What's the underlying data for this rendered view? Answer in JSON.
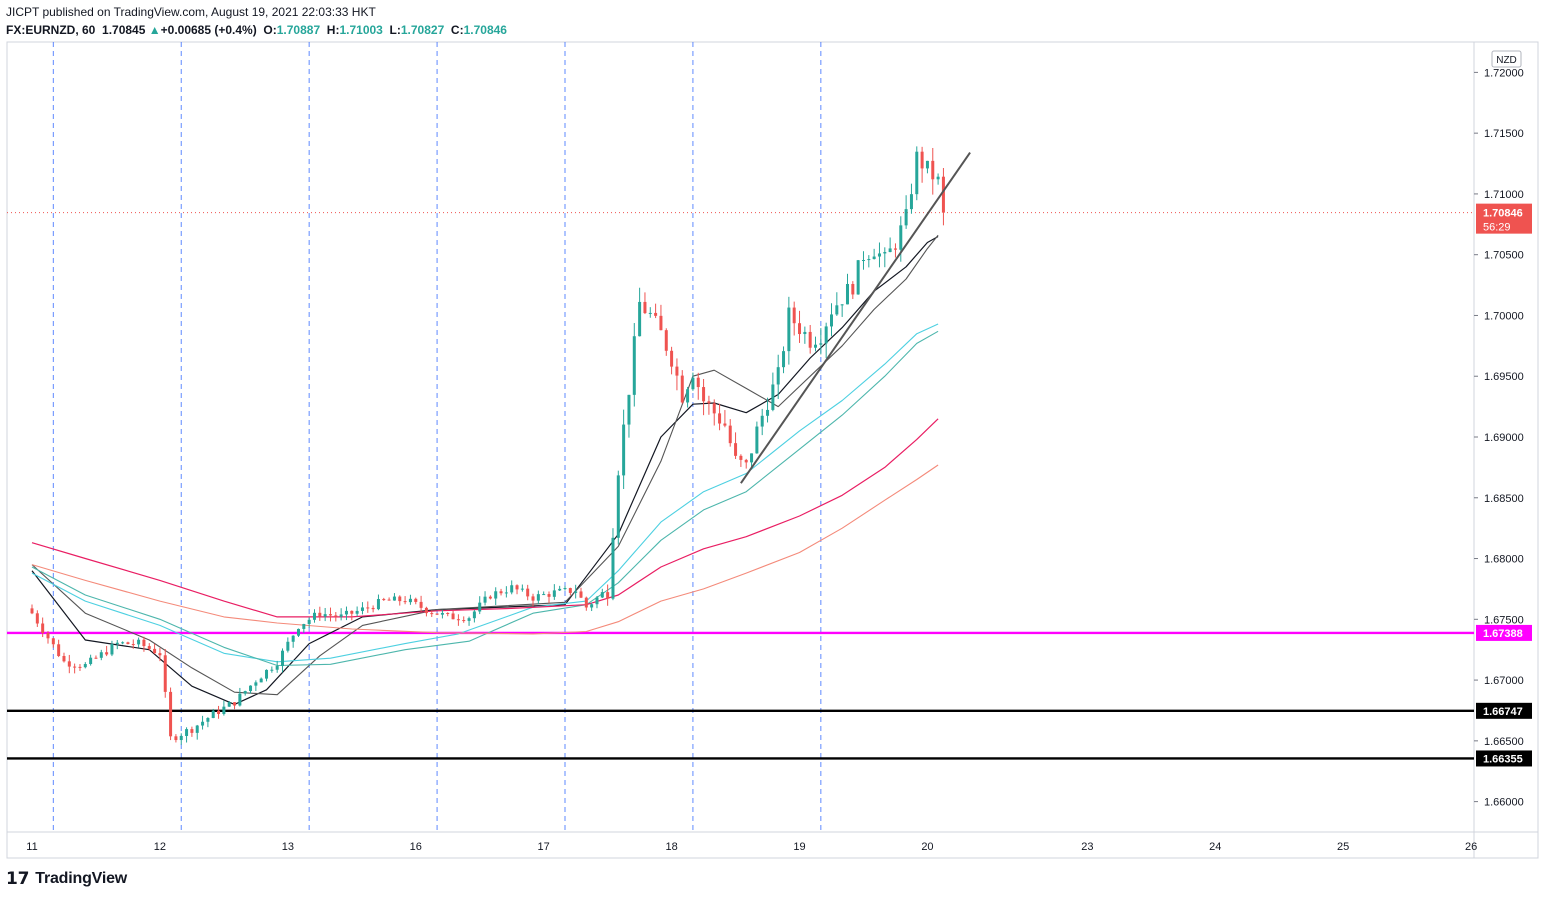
{
  "header": {
    "publisher": "JICPT published on TradingView.com, August 19, 2021 22:03:33 HKT",
    "symbol": "FX:EURNZD, 60",
    "price": "1.70845",
    "change": "+0.00685 (+0.4%)",
    "o_label": "O:",
    "o_value": "1.70887",
    "h_label": "H:",
    "h_value": "1.71003",
    "l_label": "L:",
    "l_value": "1.70827",
    "c_label": "C:",
    "c_value": "1.70846"
  },
  "footer": {
    "logo_text": "TradingView",
    "logo_mark": "17"
  },
  "colors": {
    "up": "#26a69a",
    "down": "#ef5350",
    "support_magenta": "#ff00ff",
    "price_tag": "#ef5350",
    "ma_cyan": "#4dd0e1",
    "ma_crimson": "#e91e63",
    "ma_salmon": "#f48a7a",
    "ma_black": "#131722",
    "ma_gray": "#555555",
    "trendline": "#555555",
    "grid_dash": "#2962ff"
  },
  "chart_data": {
    "type": "candlestick",
    "currency_label": "NZD",
    "ylim": [
      1.6575,
      1.7225
    ],
    "y_ticks": [
      "1.72000",
      "1.71500",
      "1.71000",
      "1.70500",
      "1.70000",
      "1.69500",
      "1.69000",
      "1.68500",
      "1.68000",
      "1.67500",
      "1.67000",
      "1.66500",
      "1.66000"
    ],
    "x_ticks": [
      {
        "t": 0,
        "label": "11"
      },
      {
        "t": 24,
        "label": "12"
      },
      {
        "t": 48,
        "label": "13"
      },
      {
        "t": 72,
        "label": "16"
      },
      {
        "t": 96,
        "label": "17"
      },
      {
        "t": 120,
        "label": "18"
      },
      {
        "t": 144,
        "label": "19"
      },
      {
        "t": 168,
        "label": "20"
      },
      {
        "t": 198,
        "label": "23"
      },
      {
        "t": 222,
        "label": "24"
      },
      {
        "t": 246,
        "label": "25"
      },
      {
        "t": 270,
        "label": "26"
      }
    ],
    "session_markers": [
      4,
      28,
      52,
      76,
      100,
      124,
      148
    ],
    "current_price": {
      "value": 1.70846,
      "label": "1.70846",
      "countdown": "56:29"
    },
    "horizontal_levels": [
      {
        "value": 1.67388,
        "label": "1.67388",
        "color": "#ff00ff"
      },
      {
        "value": 1.66747,
        "label": "1.66747",
        "color": "#000000"
      },
      {
        "value": 1.66355,
        "label": "1.66355",
        "color": "#000000"
      }
    ],
    "trendline": {
      "start": {
        "t": 133,
        "price": 1.6862
      },
      "end": {
        "t": 176,
        "price": 1.7134
      }
    },
    "close_anchors": [
      [
        0,
        1.6755
      ],
      [
        6,
        1.6715
      ],
      [
        10,
        1.6712
      ],
      [
        16,
        1.673
      ],
      [
        20,
        1.673
      ],
      [
        24,
        1.6722
      ],
      [
        26,
        1.6652
      ],
      [
        30,
        1.666
      ],
      [
        34,
        1.6672
      ],
      [
        38,
        1.6682
      ],
      [
        42,
        1.67
      ],
      [
        46,
        1.6715
      ],
      [
        50,
        1.6745
      ],
      [
        54,
        1.6755
      ],
      [
        58,
        1.6752
      ],
      [
        62,
        1.6758
      ],
      [
        66,
        1.6765
      ],
      [
        70,
        1.6766
      ],
      [
        74,
        1.6758
      ],
      [
        78,
        1.6752
      ],
      [
        82,
        1.6752
      ],
      [
        86,
        1.677
      ],
      [
        90,
        1.6776
      ],
      [
        94,
        1.6768
      ],
      [
        98,
        1.6772
      ],
      [
        102,
        1.6774
      ],
      [
        104,
        1.676
      ],
      [
        108,
        1.6775
      ],
      [
        110,
        1.6875
      ],
      [
        112,
        1.694
      ],
      [
        114,
        1.701
      ],
      [
        116,
        1.7
      ],
      [
        118,
        1.6985
      ],
      [
        120,
        1.6965
      ],
      [
        122,
        1.6935
      ],
      [
        124,
        1.6955
      ],
      [
        126,
        1.693
      ],
      [
        128,
        1.692
      ],
      [
        130,
        1.691
      ],
      [
        132,
        1.688
      ],
      [
        134,
        1.6875
      ],
      [
        136,
        1.6905
      ],
      [
        138,
        1.693
      ],
      [
        140,
        1.695
      ],
      [
        142,
        1.7
      ],
      [
        144,
        1.699
      ],
      [
        146,
        1.698
      ],
      [
        148,
        1.6985
      ],
      [
        150,
        1.7005
      ],
      [
        152,
        1.7015
      ],
      [
        154,
        1.7025
      ],
      [
        156,
        1.705
      ],
      [
        158,
        1.7055
      ],
      [
        160,
        1.7045
      ],
      [
        162,
        1.706
      ],
      [
        164,
        1.708
      ],
      [
        166,
        1.713
      ],
      [
        168,
        1.712
      ],
      [
        170,
        1.711
      ],
      [
        171,
        1.7085
      ]
    ],
    "moving_averages": [
      {
        "name": "MA black",
        "color": "#131722",
        "width": 1.2,
        "points": [
          [
            0,
            1.679
          ],
          [
            10,
            1.6733
          ],
          [
            22,
            1.6725
          ],
          [
            30,
            1.6695
          ],
          [
            38,
            1.668
          ],
          [
            44,
            1.6692
          ],
          [
            52,
            1.673
          ],
          [
            62,
            1.6752
          ],
          [
            76,
            1.6758
          ],
          [
            100,
            1.6762
          ],
          [
            110,
            1.682
          ],
          [
            118,
            1.69
          ],
          [
            124,
            1.6927
          ],
          [
            128,
            1.6928
          ],
          [
            134,
            1.692
          ],
          [
            140,
            1.6935
          ],
          [
            146,
            1.6965
          ],
          [
            152,
            1.699
          ],
          [
            158,
            1.702
          ],
          [
            164,
            1.704
          ],
          [
            168,
            1.706
          ],
          [
            170,
            1.7065
          ]
        ]
      },
      {
        "name": "MA gray",
        "color": "#555555",
        "width": 1.1,
        "points": [
          [
            0,
            1.6795
          ],
          [
            10,
            1.6755
          ],
          [
            22,
            1.6733
          ],
          [
            30,
            1.671
          ],
          [
            38,
            1.669
          ],
          [
            46,
            1.6688
          ],
          [
            54,
            1.672
          ],
          [
            62,
            1.6745
          ],
          [
            76,
            1.6758
          ],
          [
            100,
            1.6764
          ],
          [
            110,
            1.681
          ],
          [
            118,
            1.688
          ],
          [
            124,
            1.695
          ],
          [
            128,
            1.6955
          ],
          [
            134,
            1.694
          ],
          [
            140,
            1.6925
          ],
          [
            146,
            1.695
          ],
          [
            152,
            1.6975
          ],
          [
            158,
            1.7005
          ],
          [
            164,
            1.703
          ],
          [
            168,
            1.7055
          ],
          [
            170,
            1.7066
          ]
        ]
      },
      {
        "name": "MA cyan",
        "color": "#4dd0e1",
        "width": 1.1,
        "points": [
          [
            0,
            1.6788
          ],
          [
            10,
            1.6765
          ],
          [
            24,
            1.6745
          ],
          [
            36,
            1.6722
          ],
          [
            46,
            1.6715
          ],
          [
            56,
            1.6718
          ],
          [
            70,
            1.673
          ],
          [
            80,
            1.6738
          ],
          [
            94,
            1.676
          ],
          [
            104,
            1.6765
          ],
          [
            110,
            1.679
          ],
          [
            118,
            1.683
          ],
          [
            126,
            1.6855
          ],
          [
            134,
            1.687
          ],
          [
            144,
            1.6905
          ],
          [
            152,
            1.693
          ],
          [
            160,
            1.696
          ],
          [
            166,
            1.6985
          ],
          [
            170,
            1.6993
          ]
        ]
      },
      {
        "name": "MA teal",
        "color": "#4db6ac",
        "width": 1.1,
        "points": [
          [
            0,
            1.6793
          ],
          [
            10,
            1.677
          ],
          [
            24,
            1.675
          ],
          [
            36,
            1.6727
          ],
          [
            46,
            1.6712
          ],
          [
            56,
            1.6713
          ],
          [
            70,
            1.6725
          ],
          [
            82,
            1.6732
          ],
          [
            94,
            1.6755
          ],
          [
            104,
            1.6762
          ],
          [
            110,
            1.678
          ],
          [
            118,
            1.6815
          ],
          [
            126,
            1.684
          ],
          [
            134,
            1.6855
          ],
          [
            144,
            1.689
          ],
          [
            152,
            1.6918
          ],
          [
            160,
            1.695
          ],
          [
            166,
            1.6977
          ],
          [
            170,
            1.6987
          ]
        ]
      },
      {
        "name": "MA crimson",
        "color": "#e91e63",
        "width": 1.2,
        "points": [
          [
            0,
            1.6813
          ],
          [
            10,
            1.68
          ],
          [
            24,
            1.6782
          ],
          [
            36,
            1.6765
          ],
          [
            46,
            1.6752
          ],
          [
            60,
            1.6752
          ],
          [
            76,
            1.6757
          ],
          [
            90,
            1.6759
          ],
          [
            104,
            1.6762
          ],
          [
            110,
            1.677
          ],
          [
            118,
            1.6793
          ],
          [
            126,
            1.6808
          ],
          [
            134,
            1.6818
          ],
          [
            144,
            1.6835
          ],
          [
            152,
            1.6852
          ],
          [
            160,
            1.6875
          ],
          [
            166,
            1.6898
          ],
          [
            170,
            1.6915
          ]
        ]
      },
      {
        "name": "MA salmon",
        "color": "#f48a7a",
        "width": 1.1,
        "points": [
          [
            0,
            1.6795
          ],
          [
            10,
            1.6782
          ],
          [
            24,
            1.6765
          ],
          [
            36,
            1.6752
          ],
          [
            46,
            1.6747
          ],
          [
            60,
            1.6742
          ],
          [
            76,
            1.6739
          ],
          [
            94,
            1.6738
          ],
          [
            104,
            1.674
          ],
          [
            110,
            1.6748
          ],
          [
            118,
            1.6765
          ],
          [
            126,
            1.6775
          ],
          [
            134,
            1.6788
          ],
          [
            144,
            1.6805
          ],
          [
            152,
            1.6825
          ],
          [
            160,
            1.6848
          ],
          [
            166,
            1.6865
          ],
          [
            170,
            1.6877
          ]
        ]
      }
    ]
  }
}
